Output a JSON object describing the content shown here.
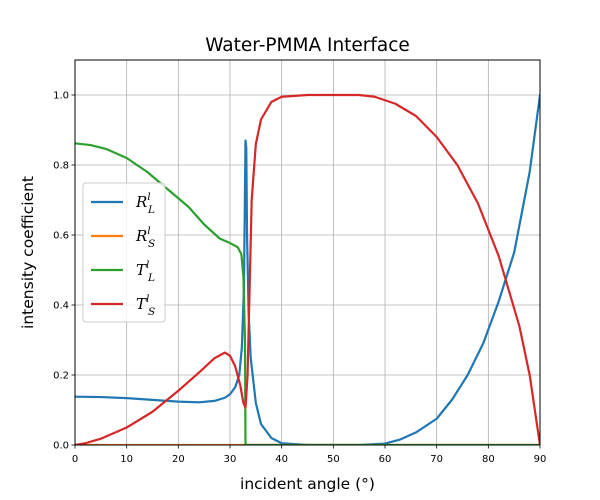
{
  "chart_data": {
    "type": "line",
    "title": "Water-PMMA Interface",
    "xlabel": "incident angle (°)",
    "ylabel": "intensity coefficient",
    "xlim": [
      0,
      90
    ],
    "ylim": [
      0,
      1.1
    ],
    "xticks": [
      0,
      10,
      20,
      30,
      40,
      50,
      60,
      70,
      80,
      90
    ],
    "xtick_labels": [
      "0",
      "10",
      "20",
      "30",
      "40",
      "50",
      "60",
      "70",
      "80",
      "90"
    ],
    "yticks": [
      0,
      0.2,
      0.4,
      0.6,
      0.8,
      1.0
    ],
    "ytick_labels": [
      "0.0",
      "0.2",
      "0.4",
      "0.6",
      "0.8",
      "1.0"
    ],
    "grid": true,
    "legend_position": "center-left",
    "series": [
      {
        "name": "R_L^l",
        "label_main": "R",
        "label_sub": "L",
        "label_sup": "l",
        "color": "#1f77b4",
        "points": [
          [
            0,
            0.138
          ],
          [
            5,
            0.137
          ],
          [
            10,
            0.134
          ],
          [
            15,
            0.129
          ],
          [
            20,
            0.124
          ],
          [
            24,
            0.122
          ],
          [
            27,
            0.126
          ],
          [
            29,
            0.135
          ],
          [
            30,
            0.145
          ],
          [
            31,
            0.165
          ],
          [
            31.8,
            0.2
          ],
          [
            32.3,
            0.28
          ],
          [
            32.7,
            0.45
          ],
          [
            33.0,
            0.87
          ],
          [
            33.15,
            0.85
          ],
          [
            33.3,
            0.6
          ],
          [
            33.6,
            0.38
          ],
          [
            34,
            0.25
          ],
          [
            35,
            0.12
          ],
          [
            36,
            0.06
          ],
          [
            38,
            0.02
          ],
          [
            40,
            0.005
          ],
          [
            45,
            0.0
          ],
          [
            55,
            0.0
          ],
          [
            60,
            0.004
          ],
          [
            63,
            0.016
          ],
          [
            66,
            0.036
          ],
          [
            70,
            0.075
          ],
          [
            73,
            0.13
          ],
          [
            76,
            0.2
          ],
          [
            79,
            0.29
          ],
          [
            82,
            0.41
          ],
          [
            85,
            0.55
          ],
          [
            88,
            0.78
          ],
          [
            90,
            1.0
          ]
        ]
      },
      {
        "name": "R_S^l",
        "label_main": "R",
        "label_sub": "S",
        "label_sup": "l",
        "color": "#ff7f0e",
        "points": [
          [
            0,
            0.0
          ],
          [
            90,
            0.0
          ]
        ]
      },
      {
        "name": "T_L^l",
        "label_main": "T",
        "label_sub": "L",
        "label_sup": "l",
        "color": "#2ca02c",
        "points": [
          [
            0,
            0.862
          ],
          [
            3,
            0.857
          ],
          [
            6,
            0.846
          ],
          [
            10,
            0.82
          ],
          [
            14,
            0.78
          ],
          [
            18,
            0.73
          ],
          [
            22,
            0.68
          ],
          [
            25,
            0.63
          ],
          [
            28,
            0.59
          ],
          [
            30,
            0.577
          ],
          [
            31.5,
            0.565
          ],
          [
            32.2,
            0.545
          ],
          [
            32.6,
            0.48
          ],
          [
            32.9,
            0.3
          ],
          [
            33.0,
            0.0
          ],
          [
            35,
            0.0
          ],
          [
            90,
            0.0
          ]
        ]
      },
      {
        "name": "T_S^l",
        "label_main": "T",
        "label_sub": "S",
        "label_sup": "l",
        "color": "#d62728",
        "points": [
          [
            0,
            0.0
          ],
          [
            2,
            0.005
          ],
          [
            5,
            0.018
          ],
          [
            10,
            0.05
          ],
          [
            15,
            0.095
          ],
          [
            20,
            0.155
          ],
          [
            24,
            0.207
          ],
          [
            27,
            0.248
          ],
          [
            29,
            0.264
          ],
          [
            30,
            0.255
          ],
          [
            31,
            0.225
          ],
          [
            32,
            0.17
          ],
          [
            32.6,
            0.12
          ],
          [
            33.0,
            0.107
          ],
          [
            33.4,
            0.2
          ],
          [
            33.8,
            0.45
          ],
          [
            34.2,
            0.7
          ],
          [
            35,
            0.86
          ],
          [
            36,
            0.93
          ],
          [
            38,
            0.98
          ],
          [
            40,
            0.995
          ],
          [
            45,
            1.0
          ],
          [
            55,
            1.0
          ],
          [
            58,
            0.995
          ],
          [
            62,
            0.975
          ],
          [
            66,
            0.94
          ],
          [
            70,
            0.88
          ],
          [
            74,
            0.8
          ],
          [
            78,
            0.69
          ],
          [
            82,
            0.54
          ],
          [
            86,
            0.34
          ],
          [
            88,
            0.2
          ],
          [
            90,
            0.0
          ]
        ]
      }
    ]
  }
}
